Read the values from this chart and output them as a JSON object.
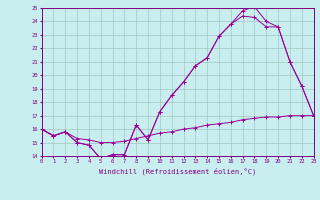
{
  "xlabel": "Windchill (Refroidissement éolien,°C)",
  "xlim": [
    0,
    23
  ],
  "ylim": [
    14,
    25
  ],
  "yticks": [
    14,
    15,
    16,
    17,
    18,
    19,
    20,
    21,
    22,
    23,
    24,
    25
  ],
  "xticks": [
    0,
    1,
    2,
    3,
    4,
    5,
    6,
    7,
    8,
    9,
    10,
    11,
    12,
    13,
    14,
    15,
    16,
    17,
    18,
    19,
    20,
    21,
    22,
    23
  ],
  "bg_color": "#c8eef0",
  "line_color": "#990099",
  "grid_color": "#a0c8c0",
  "line1_y": [
    16.0,
    15.5,
    15.8,
    15.0,
    14.8,
    13.8,
    14.1,
    14.1,
    16.3,
    15.2,
    17.3,
    18.5,
    19.5,
    20.7,
    21.3,
    22.9,
    23.8,
    24.8,
    25.1,
    24.0,
    23.6,
    21.0,
    19.2,
    17.0
  ],
  "line2_y": [
    16.0,
    15.5,
    15.8,
    15.0,
    14.8,
    13.8,
    14.1,
    14.1,
    16.3,
    15.2,
    17.3,
    18.5,
    19.5,
    20.7,
    21.3,
    22.9,
    23.8,
    24.4,
    24.3,
    23.6,
    23.6,
    21.0,
    19.2,
    17.0
  ],
  "line3_y": [
    16.0,
    15.5,
    15.8,
    15.3,
    15.2,
    15.0,
    15.0,
    15.1,
    15.3,
    15.5,
    15.7,
    15.8,
    16.0,
    16.1,
    16.3,
    16.4,
    16.5,
    16.7,
    16.8,
    16.9,
    16.9,
    17.0,
    17.0,
    17.0
  ]
}
